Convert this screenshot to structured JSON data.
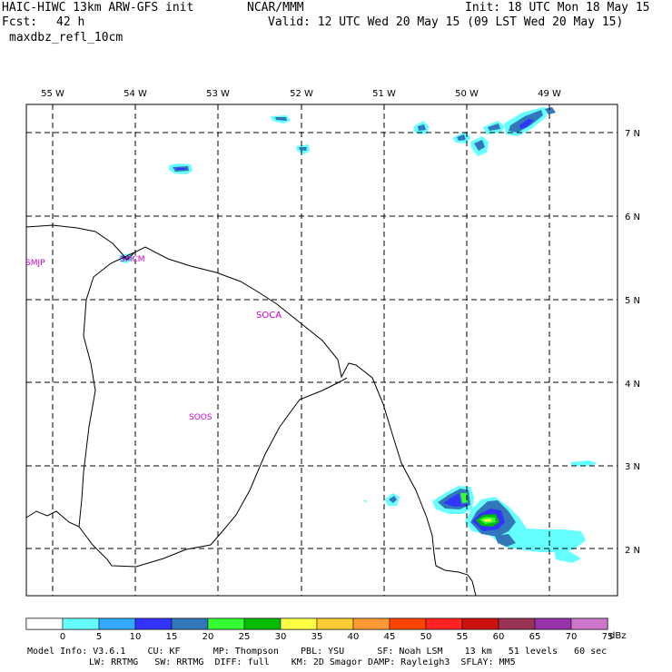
{
  "header": {
    "title": "HAIC-HIWC 13km ARW-GFS init",
    "center": "NCAR/MMM",
    "init": "Init: 18 UTC Mon 18 May 15",
    "fcst_label": "Fcst:",
    "fcst_value": "42 h",
    "valid": "Valid: 12 UTC Wed 20 May 15 (09 LST Wed 20 May 15)",
    "field": "maxdbz_refl_10cm"
  },
  "map": {
    "lon_labels": [
      "55 W",
      "54 W",
      "53 W",
      "52 W",
      "51 W",
      "50 W",
      "49 W"
    ],
    "lat_labels": [
      "7 N",
      "6 N",
      "5 N",
      "4 N",
      "3 N",
      "2 N"
    ],
    "stations": [
      "SMJP",
      "SMCM",
      "SOCA",
      "SOOS"
    ]
  },
  "colorbar": {
    "ticks": [
      "0",
      "5",
      "10",
      "15",
      "20",
      "25",
      "30",
      "35",
      "40",
      "45",
      "50",
      "55",
      "60",
      "65",
      "70",
      "75"
    ],
    "units": "dBz",
    "colors": [
      "#ffffff",
      "#66ffff",
      "#33aaff",
      "#3333ff",
      "#3377bb",
      "#33ff33",
      "#00bb00",
      "#ffff44",
      "#ffcc33",
      "#ff9933",
      "#ff4400",
      "#ff2222",
      "#cc1111",
      "#993355",
      "#9933aa",
      "#cc77cc"
    ]
  },
  "footer": {
    "line1": "Model Info: V3.6.1    CU: KF      MP: Thompson    PBL: YSU      SF: Noah LSM    13 km   51 levels   60 sec",
    "line2": "LW: RRTMG   SW: RRTMG  DIFF: full    KM: 2D Smagor DAMP: Rayleigh3  SFLAY: MM5"
  }
}
